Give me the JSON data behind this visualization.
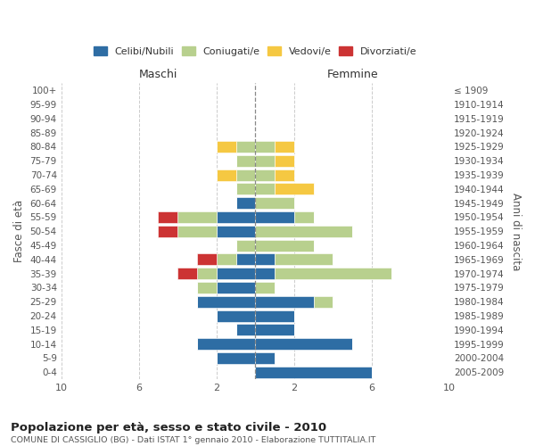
{
  "age_groups": [
    "0-4",
    "5-9",
    "10-14",
    "15-19",
    "20-24",
    "25-29",
    "30-34",
    "35-39",
    "40-44",
    "45-49",
    "50-54",
    "55-59",
    "60-64",
    "65-69",
    "70-74",
    "75-79",
    "80-84",
    "85-89",
    "90-94",
    "95-99",
    "100+"
  ],
  "birth_years": [
    "2005-2009",
    "2000-2004",
    "1995-1999",
    "1990-1994",
    "1985-1989",
    "1980-1984",
    "1975-1979",
    "1970-1974",
    "1965-1969",
    "1960-1964",
    "1955-1959",
    "1950-1954",
    "1945-1949",
    "1940-1944",
    "1935-1939",
    "1930-1934",
    "1925-1929",
    "1920-1924",
    "1915-1919",
    "1910-1914",
    "≤ 1909"
  ],
  "male": {
    "celibi": [
      0,
      2,
      3,
      1,
      2,
      3,
      2,
      2,
      1,
      0,
      2,
      2,
      1,
      0,
      0,
      0,
      0,
      0,
      0,
      0,
      0
    ],
    "coniugati": [
      0,
      0,
      0,
      0,
      0,
      0,
      1,
      1,
      1,
      1,
      2,
      2,
      0,
      1,
      1,
      1,
      1,
      0,
      0,
      0,
      0
    ],
    "vedovi": [
      0,
      0,
      0,
      0,
      0,
      0,
      0,
      0,
      0,
      0,
      0,
      0,
      0,
      0,
      1,
      0,
      1,
      0,
      0,
      0,
      0
    ],
    "divorziati": [
      0,
      0,
      0,
      0,
      0,
      0,
      0,
      1,
      1,
      0,
      1,
      1,
      0,
      0,
      0,
      0,
      0,
      0,
      0,
      0,
      0
    ]
  },
  "female": {
    "nubili": [
      6,
      1,
      5,
      2,
      2,
      3,
      0,
      1,
      1,
      0,
      0,
      2,
      0,
      0,
      0,
      0,
      0,
      0,
      0,
      0,
      0
    ],
    "coniugate": [
      0,
      0,
      0,
      0,
      0,
      1,
      1,
      6,
      3,
      3,
      5,
      1,
      2,
      1,
      1,
      1,
      1,
      0,
      0,
      0,
      0
    ],
    "vedove": [
      0,
      0,
      0,
      0,
      0,
      0,
      0,
      0,
      0,
      0,
      0,
      0,
      0,
      2,
      1,
      1,
      1,
      0,
      0,
      0,
      0
    ],
    "divorziate": [
      0,
      0,
      0,
      0,
      0,
      0,
      0,
      0,
      0,
      0,
      0,
      0,
      0,
      0,
      0,
      0,
      0,
      0,
      0,
      0,
      0
    ]
  },
  "colors": {
    "celibi": "#2e6da4",
    "coniugati": "#b8d08e",
    "vedovi": "#f5c842",
    "divorziati": "#cc3333"
  },
  "xlim": 10,
  "title": "Popolazione per età, sesso e stato civile - 2010",
  "subtitle": "COMUNE DI CASSIGLIO (BG) - Dati ISTAT 1° gennaio 2010 - Elaborazione TUTTITALIA.IT",
  "ylabel": "Fasce di età",
  "ylabel_right": "Anni di nascita",
  "xlabel_left": "Maschi",
  "xlabel_right": "Femmine",
  "bg_color": "#ffffff",
  "grid_color": "#cccccc"
}
